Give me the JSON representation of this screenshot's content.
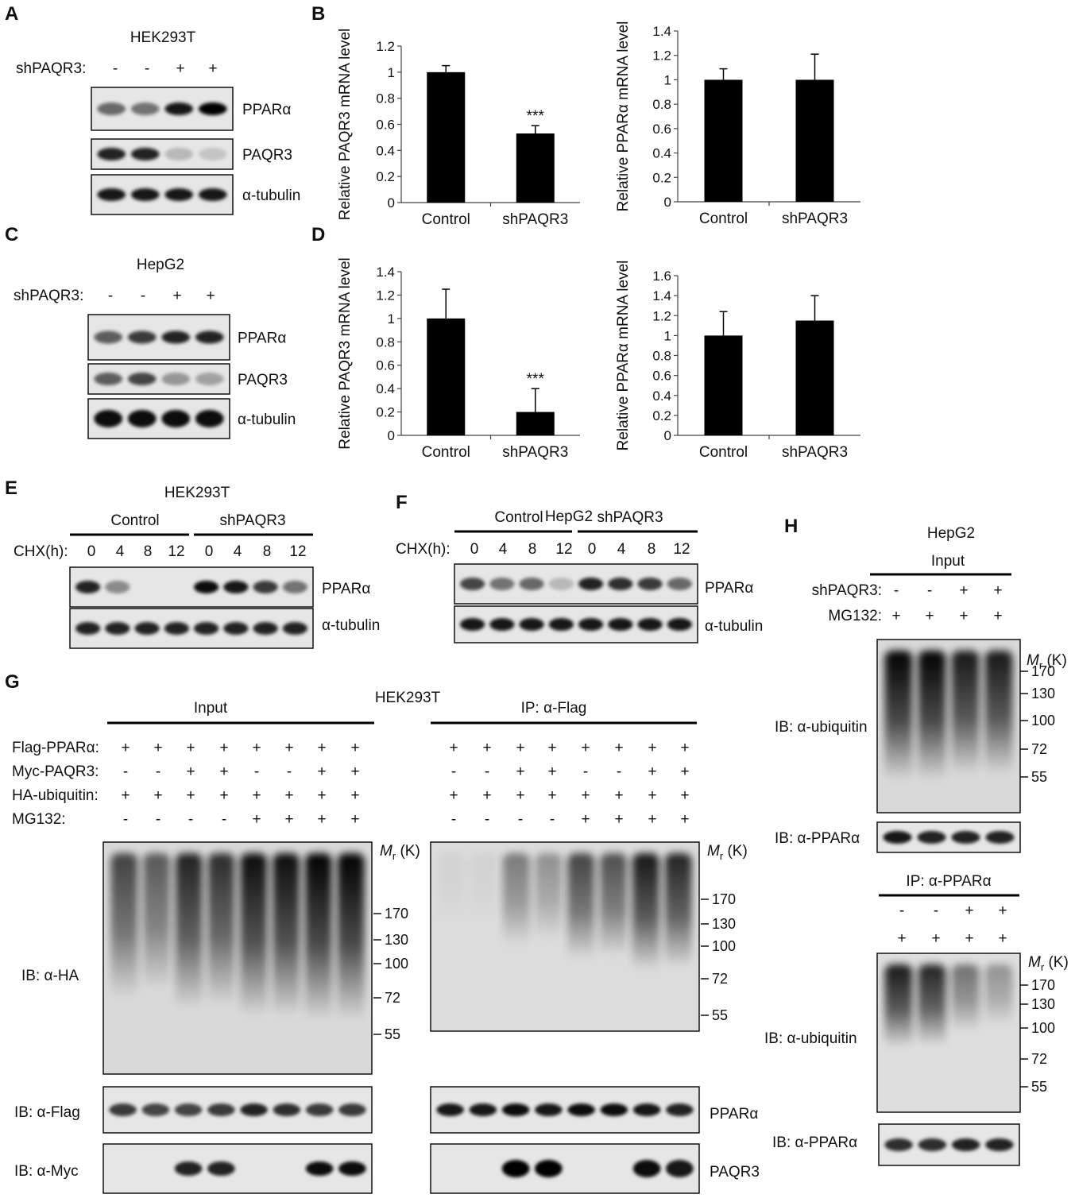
{
  "panel_letters": [
    "A",
    "B",
    "C",
    "D",
    "E",
    "F",
    "G",
    "H"
  ],
  "panel_A": {
    "cell_line": "HEK293T",
    "treatment_label": "shPAQR3:",
    "signs": [
      "-",
      "-",
      "+",
      "+"
    ],
    "blots": [
      {
        "label": "PPARα",
        "intensity": [
          0.55,
          0.5,
          0.9,
          1.0
        ]
      },
      {
        "label": "PAQR3",
        "intensity": [
          0.85,
          0.85,
          0.2,
          0.15
        ]
      },
      {
        "label": "α-tubulin",
        "intensity": [
          0.9,
          0.9,
          0.9,
          0.9
        ]
      }
    ]
  },
  "panel_C": {
    "cell_line": "HepG2",
    "treatment_label": "shPAQR3:",
    "signs": [
      "-",
      "-",
      "+",
      "+"
    ],
    "blots": [
      {
        "label": "PPARα",
        "intensity": [
          0.6,
          0.75,
          0.85,
          0.85
        ]
      },
      {
        "label": "PAQR3",
        "intensity": [
          0.6,
          0.7,
          0.35,
          0.3
        ]
      },
      {
        "label": "α-tubulin",
        "intensity": [
          0.95,
          0.95,
          0.95,
          0.95
        ]
      }
    ]
  },
  "chart_data": [
    {
      "panel": "B",
      "type": "bar",
      "categories": [
        "Control",
        "shPAQR3"
      ],
      "values": [
        1.0,
        0.53
      ],
      "errors": [
        0.05,
        0.06
      ],
      "ylabel": "Relative PAQR3 mRNA level",
      "ylim": [
        0,
        1.2
      ],
      "yticks": [
        "0",
        "0.2",
        "0.4",
        "0.6",
        "0.8",
        "1",
        "1.2"
      ],
      "annotations": [
        "",
        "***"
      ],
      "color": "#000000"
    },
    {
      "panel": "B",
      "type": "bar",
      "categories": [
        "Control",
        "shPAQR3"
      ],
      "values": [
        1.0,
        1.0
      ],
      "errors": [
        0.09,
        0.21
      ],
      "ylabel": "Relative PPARα mRNA level",
      "ylim": [
        0,
        1.4
      ],
      "yticks": [
        "0",
        "0.2",
        "0.4",
        "0.6",
        "0.8",
        "1",
        "1.2",
        "1.4"
      ],
      "annotations": [
        "",
        ""
      ],
      "color": "#000000"
    },
    {
      "panel": "D",
      "type": "bar",
      "categories": [
        "Control",
        "shPAQR3"
      ],
      "values": [
        1.0,
        0.2
      ],
      "errors": [
        0.25,
        0.2
      ],
      "ylabel": "Relative PAQR3 mRNA level",
      "ylim": [
        0,
        1.4
      ],
      "yticks": [
        "0",
        "0.2",
        "0.4",
        "0.6",
        "0.8",
        "1",
        "1.2",
        "1.4"
      ],
      "annotations": [
        "",
        "***"
      ],
      "color": "#000000"
    },
    {
      "panel": "D",
      "type": "bar",
      "categories": [
        "Control",
        "shPAQR3"
      ],
      "values": [
        1.0,
        1.15
      ],
      "errors": [
        0.24,
        0.25
      ],
      "ylabel": "Relative PPARα mRNA level",
      "ylim": [
        0,
        1.6
      ],
      "yticks": [
        "0",
        "0.2",
        "0.4",
        "0.6",
        "0.8",
        "1",
        "1.2",
        "1.4",
        "1.6"
      ],
      "annotations": [
        "",
        ""
      ],
      "color": "#000000"
    }
  ],
  "panel_E": {
    "cell_line": "HEK293T",
    "groups": [
      "Control",
      "shPAQR3"
    ],
    "chx_label": "CHX(h):",
    "times": [
      "0",
      "4",
      "8",
      "12",
      "0",
      "4",
      "8",
      "12"
    ],
    "blots": [
      {
        "label": "PPARα",
        "intensity": [
          0.85,
          0.4,
          0.0,
          0.0,
          0.95,
          0.9,
          0.75,
          0.5
        ]
      },
      {
        "label": "α-tubulin",
        "intensity": [
          0.85,
          0.85,
          0.85,
          0.85,
          0.85,
          0.85,
          0.85,
          0.85
        ]
      }
    ]
  },
  "panel_F": {
    "cell_line": "HepG2",
    "groups": [
      "Control",
      "shPAQR3"
    ],
    "chx_label": "CHX(h):",
    "times": [
      "0",
      "4",
      "8",
      "12",
      "0",
      "4",
      "8",
      "12"
    ],
    "blots": [
      {
        "label": "PPARα",
        "intensity": [
          0.7,
          0.5,
          0.55,
          0.2,
          0.85,
          0.8,
          0.75,
          0.55
        ]
      },
      {
        "label": "α-tubulin",
        "intensity": [
          0.9,
          0.9,
          0.9,
          0.9,
          0.9,
          0.9,
          0.9,
          0.9
        ]
      }
    ]
  },
  "panel_G": {
    "cell_line": "HEK293T",
    "input_label": "Input",
    "ip_label": "IP: α-Flag",
    "rows": [
      {
        "label": "Flag-PPARα:",
        "signs": [
          "+",
          "+",
          "+",
          "+",
          "+",
          "+",
          "+",
          "+"
        ]
      },
      {
        "label": "Myc-PAQR3:",
        "signs": [
          "-",
          "-",
          "+",
          "+",
          "-",
          "-",
          "+",
          "+"
        ]
      },
      {
        "label": "HA-ubiquitin:",
        "signs": [
          "+",
          "+",
          "+",
          "+",
          "+",
          "+",
          "+",
          "+"
        ]
      },
      {
        "label": "MG132:",
        "signs": [
          "-",
          "-",
          "-",
          "-",
          "+",
          "+",
          "+",
          "+"
        ]
      }
    ],
    "mr_label": "(K)",
    "mr_italic": "M",
    "mr_sub": "r",
    "markers": [
      "170",
      "130",
      "100",
      "72",
      "55"
    ],
    "ib_ha": "IB: α-HA",
    "ib_flag": "IB: α-Flag",
    "ib_myc": "IB: α-Myc",
    "ppar_label": "PPARα",
    "paqr3_label": "PAQR3",
    "input_smear": [
      0.7,
      0.6,
      0.85,
      0.8,
      0.95,
      0.95,
      1.0,
      1.0
    ],
    "ip_smear": [
      0.05,
      0.05,
      0.45,
      0.35,
      0.7,
      0.65,
      0.9,
      0.85
    ],
    "flag_bands": [
      0.75,
      0.7,
      0.7,
      0.75,
      0.85,
      0.8,
      0.75,
      0.75
    ],
    "myc_bands_input": [
      0,
      0,
      0.85,
      0.85,
      0,
      0,
      0.95,
      0.95
    ],
    "ip_ppar_bands": [
      0.9,
      0.9,
      0.95,
      0.9,
      0.95,
      0.95,
      0.9,
      0.85
    ],
    "ip_paqr3_bands": [
      0,
      0,
      1.0,
      1.0,
      0,
      0,
      0.95,
      0.9
    ]
  },
  "panel_H": {
    "cell_line": "HepG2",
    "input_label": "Input",
    "ip_label": "IP: α-PPARα",
    "rows": [
      {
        "label": "shPAQR3:",
        "signs": [
          "-",
          "-",
          "+",
          "+"
        ]
      },
      {
        "label": "MG132:",
        "signs": [
          "+",
          "+",
          "+",
          "+"
        ]
      }
    ],
    "ip_signs_top": [
      "-",
      "-",
      "+",
      "+"
    ],
    "ip_signs_bottom": [
      "+",
      "+",
      "+",
      "+"
    ],
    "markers_input": [
      "170",
      "130",
      "100",
      "72",
      "55"
    ],
    "markers_ip": [
      "170",
      "130",
      "100",
      "72",
      "55"
    ],
    "ib_ubiquitin": "IB: α-ubiquitin",
    "ib_ppar": "IB: α-PPARα",
    "input_smear": [
      1.0,
      1.0,
      0.9,
      0.9
    ],
    "ip_smear": [
      0.9,
      0.85,
      0.5,
      0.35
    ]
  }
}
